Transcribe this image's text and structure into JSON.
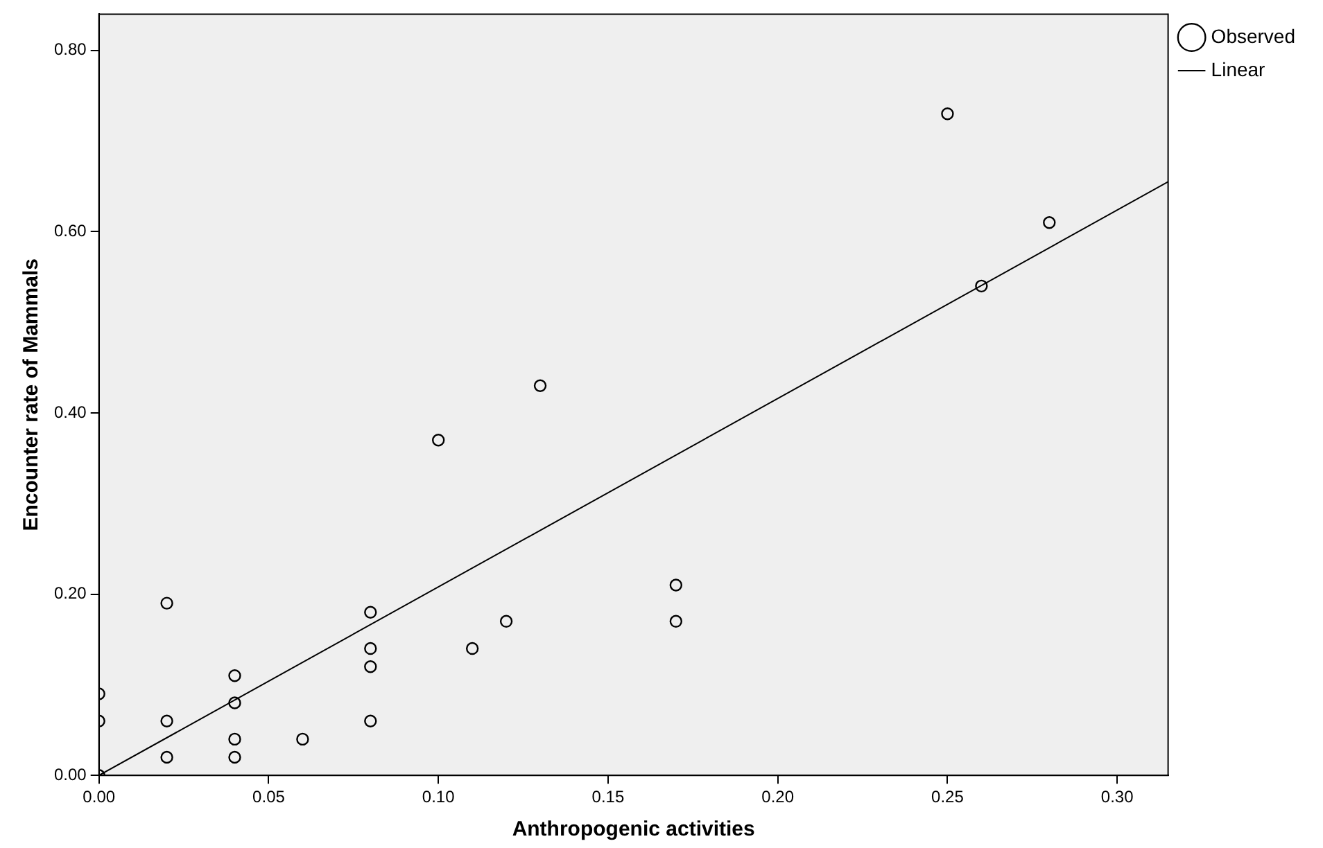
{
  "chart_data": {
    "type": "scatter",
    "xlabel": "Anthropogenic activities",
    "ylabel": "Encounter rate of Mammals",
    "xlim": [
      0,
      0.315
    ],
    "xticks": [
      {
        "value": 0,
        "label": "0.00"
      },
      {
        "value": 0.05,
        "label": "0.05"
      },
      {
        "value": 0.1,
        "label": "0.10"
      },
      {
        "value": 0.15,
        "label": "0.15"
      },
      {
        "value": 0.2,
        "label": "0.20"
      },
      {
        "value": 0.25,
        "label": "0.25"
      },
      {
        "value": 0.3,
        "label": "0.30"
      }
    ],
    "ylim": [
      0,
      0.84
    ],
    "yticks": [
      {
        "value": 0,
        "label": "0.00"
      },
      {
        "value": 0.2,
        "label": "0.20"
      },
      {
        "value": 0.4,
        "label": "0.40"
      },
      {
        "value": 0.6,
        "label": "0.60"
      },
      {
        "value": 0.8,
        "label": "0.80"
      }
    ],
    "grid": false,
    "legend": "top right",
    "series": [
      {
        "name": "Observed",
        "marker": "circle",
        "color": "#000000",
        "x": [
          0,
          0,
          0,
          0.02,
          0.02,
          0.02,
          0.04,
          0.04,
          0.04,
          0.04,
          0.06,
          0.08,
          0.08,
          0.08,
          0.08,
          0.1,
          0.11,
          0.12,
          0.13,
          0.17,
          0.17,
          0.25,
          0.26,
          0.28
        ],
        "values": [
          0.09,
          0.06,
          0,
          0.19,
          0.06,
          0.02,
          0.11,
          0.08,
          0.04,
          0.02,
          0.04,
          0.18,
          0.14,
          0.12,
          0.06,
          0.37,
          0.14,
          0.17,
          0.43,
          0.21,
          0.17,
          0.73,
          0.54,
          0.61
        ]
      },
      {
        "name": "Linear",
        "type": "line",
        "marker": "none",
        "color": "#000000",
        "line_style": "solid",
        "x": [
          0,
          0.315
        ],
        "values": [
          0,
          0.655
        ]
      }
    ]
  }
}
